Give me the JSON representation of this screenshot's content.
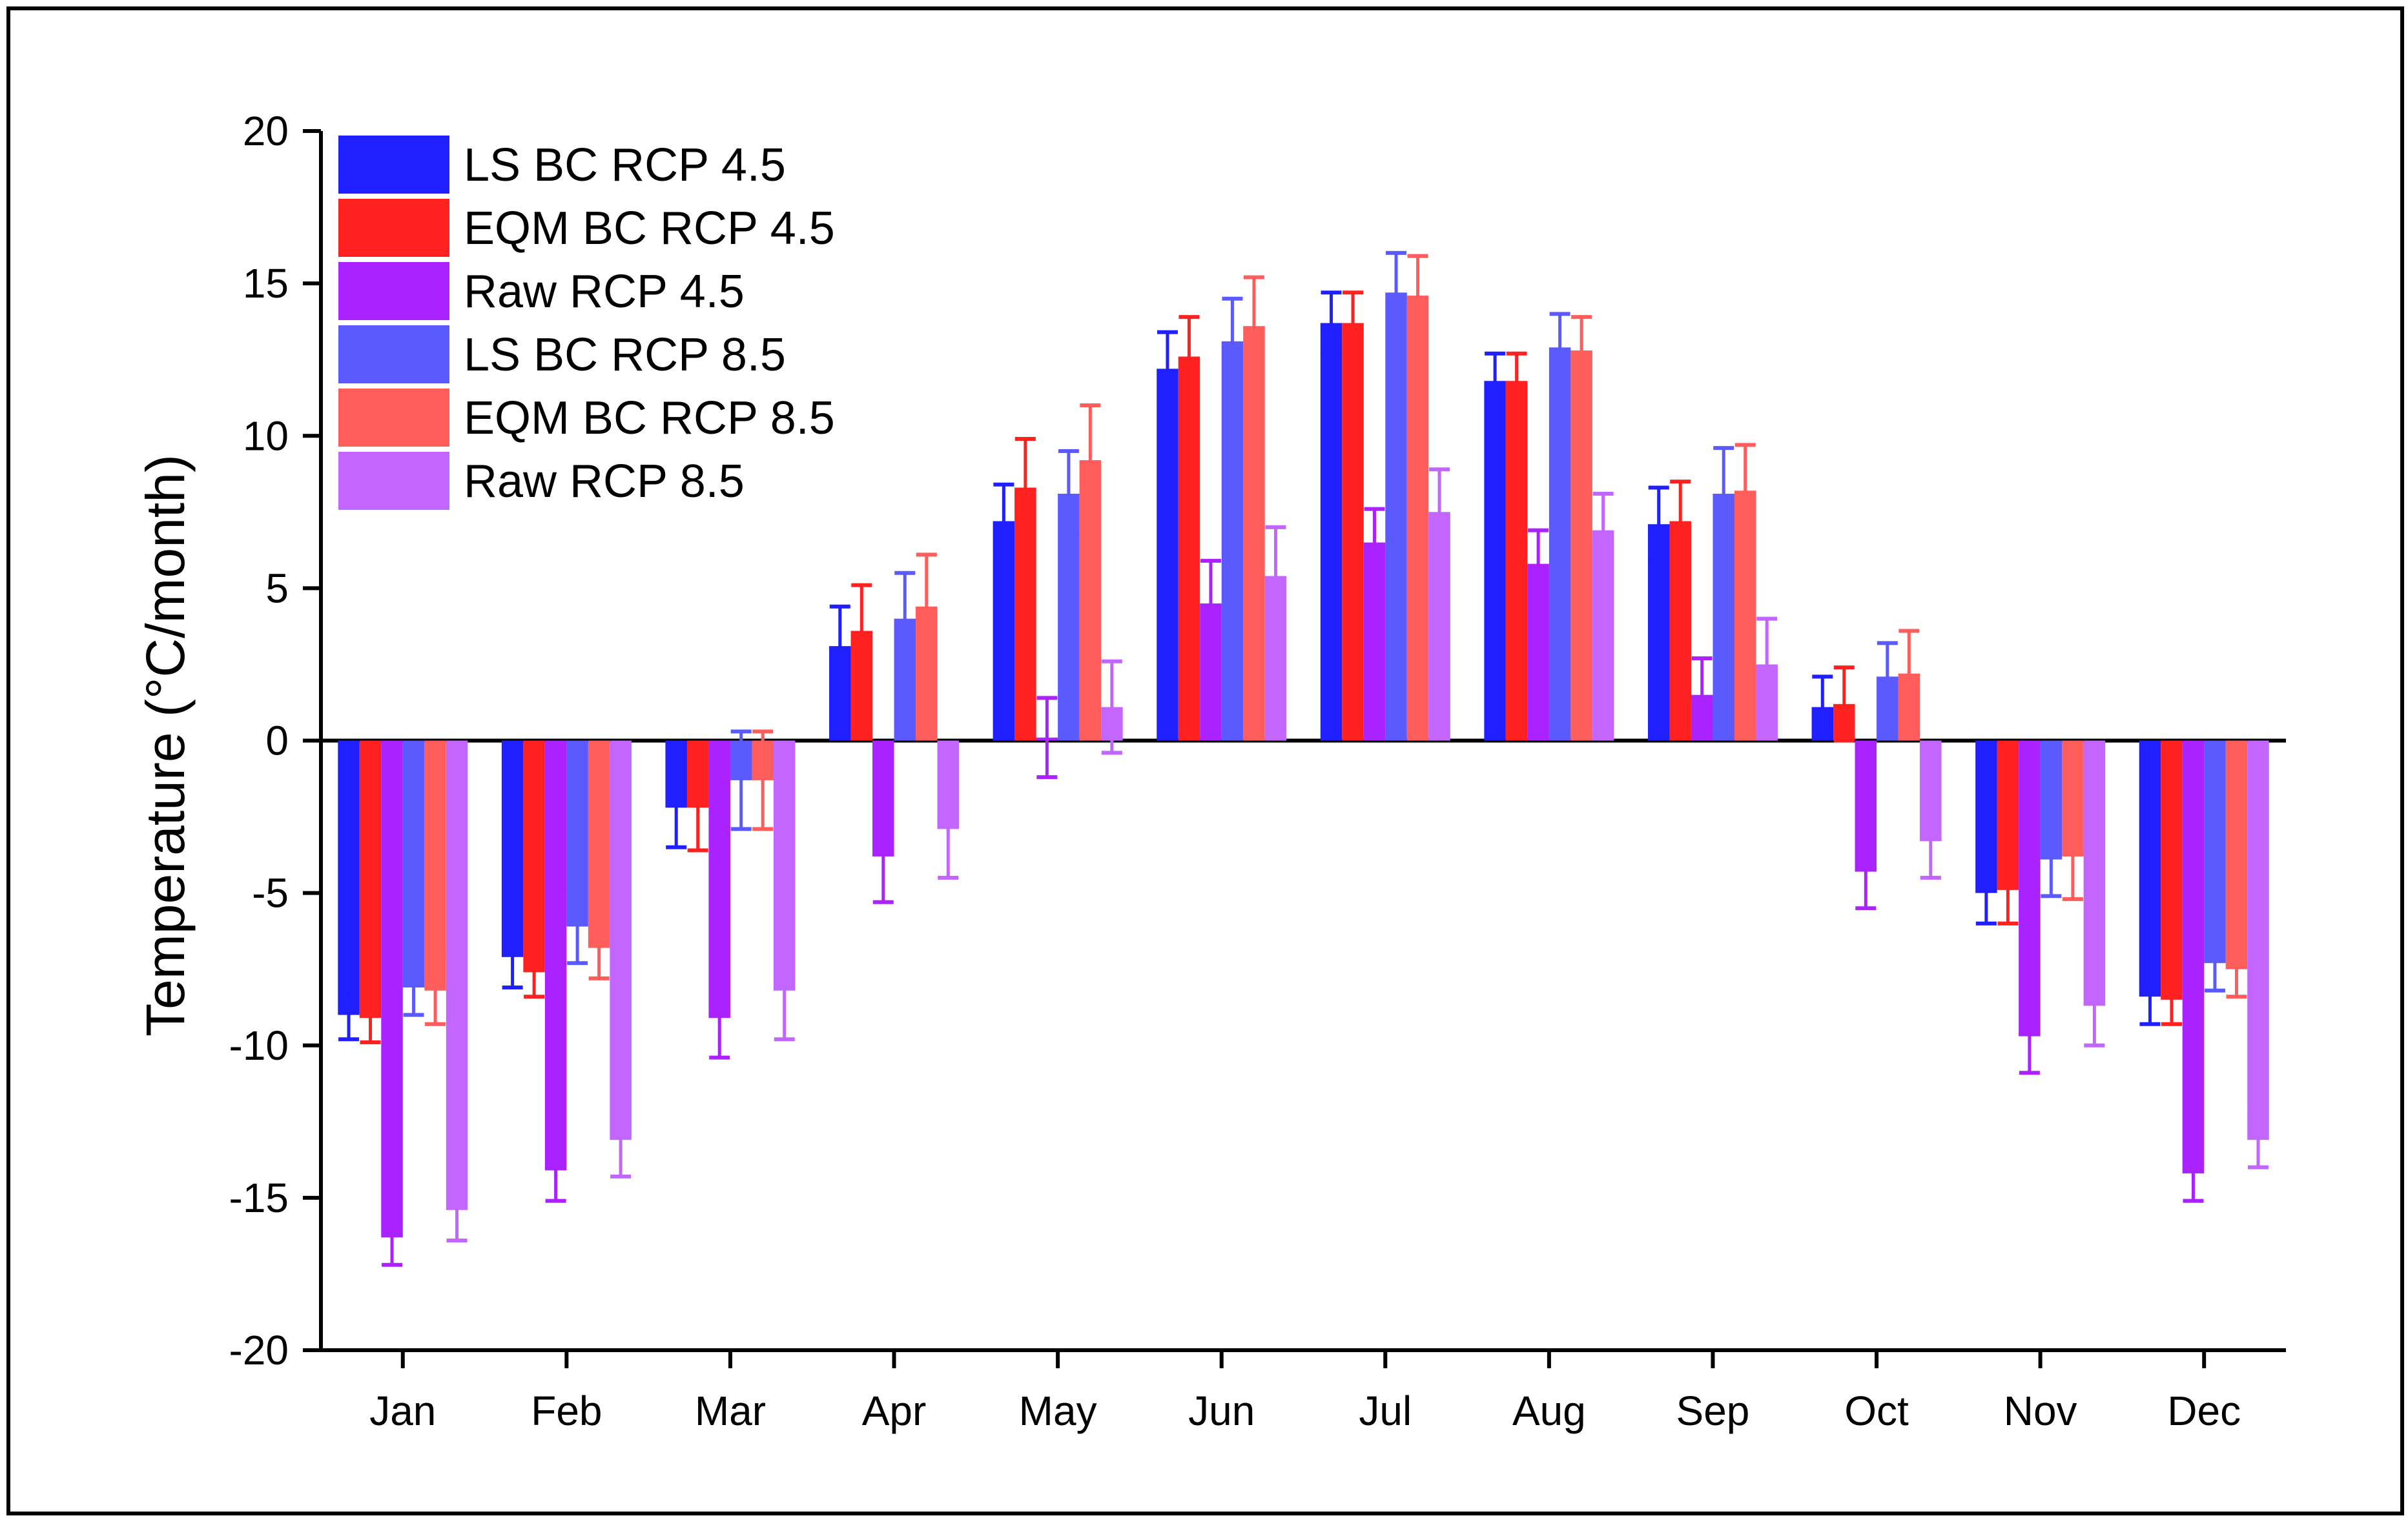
{
  "chart_data": {
    "type": "bar",
    "title": "",
    "xlabel": "",
    "ylabel": "Temperature (°C/month)",
    "ylim": [
      -20,
      20
    ],
    "yticks": [
      20,
      15,
      10,
      5,
      0,
      -5,
      -10,
      -15,
      -20
    ],
    "categories": [
      "Jan",
      "Feb",
      "Mar",
      "Apr",
      "May",
      "Jun",
      "Jul",
      "Aug",
      "Sep",
      "Oct",
      "Nov",
      "Dec"
    ],
    "legend_position": "top-left",
    "error_bars": "symmetric, half-width listed in 'errors' per series",
    "series": [
      {
        "name": "LS BC  RCP 4.5",
        "color": "#1f1fff",
        "values": [
          -9.0,
          -7.1,
          -2.2,
          3.1,
          7.2,
          12.2,
          13.7,
          11.8,
          7.1,
          1.1,
          -5.0,
          -8.4
        ],
        "errors": [
          0.8,
          1.0,
          1.3,
          1.3,
          1.2,
          1.2,
          1.0,
          0.9,
          1.2,
          1.0,
          1.0,
          0.9
        ]
      },
      {
        "name": "EQM BC  RCP 4.5",
        "color": "#ff2020",
        "values": [
          -9.1,
          -7.6,
          -2.2,
          3.6,
          8.3,
          12.6,
          13.7,
          11.8,
          7.2,
          1.2,
          -4.9,
          -8.5
        ],
        "errors": [
          0.8,
          0.8,
          1.4,
          1.5,
          1.6,
          1.3,
          1.0,
          0.9,
          1.3,
          1.2,
          1.1,
          0.8
        ]
      },
      {
        "name": "Raw  RCP 4.5",
        "color": "#aa22ff",
        "values": [
          -16.3,
          -14.1,
          -9.1,
          -3.8,
          0.1,
          4.5,
          6.5,
          5.8,
          1.5,
          -4.3,
          -9.7,
          -14.2
        ],
        "errors": [
          0.9,
          1.0,
          1.3,
          1.5,
          1.3,
          1.4,
          1.1,
          1.1,
          1.2,
          1.2,
          1.2,
          0.9
        ]
      },
      {
        "name": "LS BC  RCP 8.5",
        "color": "#5a5aff",
        "values": [
          -8.1,
          -6.1,
          -1.3,
          4.0,
          8.1,
          13.1,
          14.7,
          12.9,
          8.1,
          2.1,
          -3.9,
          -7.3
        ],
        "errors": [
          0.9,
          1.2,
          1.6,
          1.5,
          1.4,
          1.4,
          1.3,
          1.1,
          1.5,
          1.1,
          1.2,
          0.9
        ]
      },
      {
        "name": "EQM BC  RCP 8.5",
        "color": "#ff5c5c",
        "values": [
          -8.2,
          -6.8,
          -1.3,
          4.4,
          9.2,
          13.6,
          14.6,
          12.8,
          8.2,
          2.2,
          -3.8,
          -7.5
        ],
        "errors": [
          1.1,
          1.0,
          1.6,
          1.7,
          1.8,
          1.6,
          1.3,
          1.1,
          1.5,
          1.4,
          1.4,
          0.9
        ]
      },
      {
        "name": "Raw  RCP 8.5",
        "color": "#c266ff",
        "values": [
          -15.4,
          -13.1,
          -8.2,
          -2.9,
          1.1,
          5.4,
          7.5,
          6.9,
          2.5,
          -3.3,
          -8.7,
          -13.1
        ],
        "errors": [
          1.0,
          1.2,
          1.6,
          1.6,
          1.5,
          1.6,
          1.4,
          1.2,
          1.5,
          1.2,
          1.3,
          0.9
        ]
      }
    ]
  }
}
